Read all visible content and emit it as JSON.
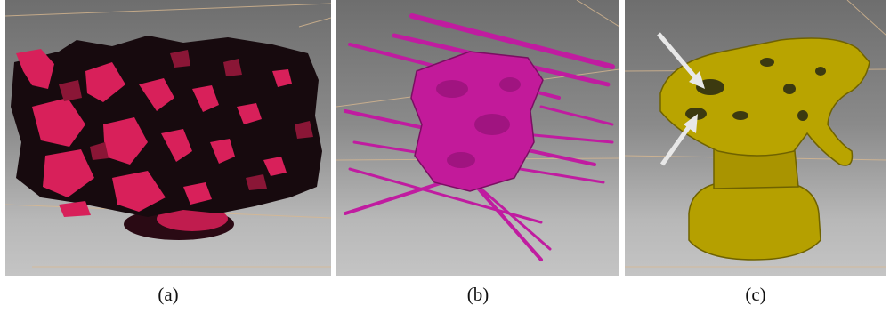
{
  "figure": {
    "panels": [
      {
        "label": "(a)",
        "description_color": "#e0245e"
      },
      {
        "label": "(b)",
        "description_color": "#c21a9a"
      },
      {
        "label": "(c)",
        "description_color": "#b9a400"
      }
    ]
  },
  "colors": {
    "render_red": "#d8205a",
    "render_magenta": "#c01ca0",
    "render_yellow": "#b5a000",
    "bounding_box": "#d8b890",
    "arrow": "#e8e8e8"
  }
}
